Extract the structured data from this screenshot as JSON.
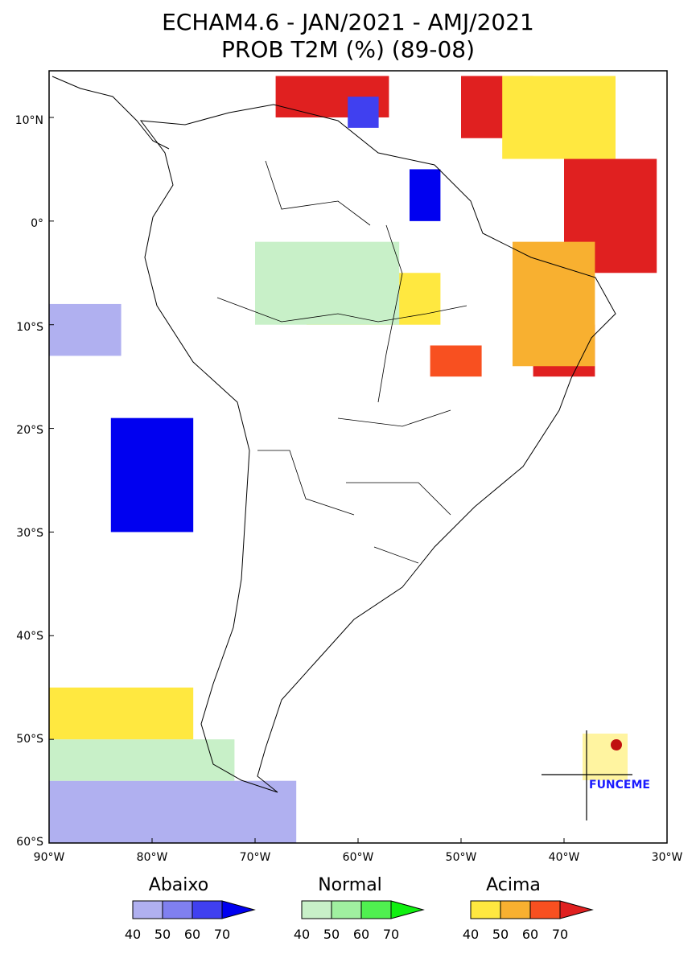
{
  "title": {
    "line1": "ECHAM4.6 - JAN/2021 - AMJ/2021",
    "line2": "PROB T2M (%) (89-08)"
  },
  "axes": {
    "y_labels": [
      "10°N",
      "0°",
      "10°S",
      "20°S",
      "30°S",
      "40°S",
      "50°S",
      "60°S"
    ],
    "x_labels": [
      "90°W",
      "80°W",
      "70°W",
      "60°W",
      "50°W",
      "40°W",
      "30°W"
    ],
    "lon_range": [
      -90,
      -30
    ],
    "lat_range": [
      -60,
      14.5
    ]
  },
  "legend": {
    "groups": [
      {
        "name": "Abaixo",
        "ticks": [
          "40",
          "50",
          "60",
          "70"
        ],
        "colors": [
          "#b0b0f0",
          "#8080f0",
          "#4040f0",
          "#0000f0"
        ]
      },
      {
        "name": "Normal",
        "ticks": [
          "40",
          "50",
          "60",
          "70"
        ],
        "colors": [
          "#c8f0c8",
          "#a0f0a0",
          "#50f050",
          "#10f010"
        ]
      },
      {
        "name": "Acima",
        "ticks": [
          "40",
          "50",
          "60",
          "70"
        ],
        "colors": [
          "#ffe840",
          "#f8b030",
          "#f85020",
          "#e02020"
        ]
      }
    ]
  },
  "logo": {
    "text": "FUNCEME"
  },
  "regions": [
    {
      "category": "Acima",
      "level": "70",
      "lon": [
        -68,
        -57
      ],
      "lat": [
        10,
        14
      ]
    },
    {
      "category": "Acima",
      "level": "70",
      "lon": [
        -50,
        -43
      ],
      "lat": [
        8,
        14
      ]
    },
    {
      "category": "Acima",
      "level": "70",
      "lon": [
        -40,
        -31
      ],
      "lat": [
        -5,
        6
      ]
    },
    {
      "category": "Acima",
      "level": "70",
      "lon": [
        -43,
        -37
      ],
      "lat": [
        -15,
        -10
      ]
    },
    {
      "category": "Acima",
      "level": "60",
      "lon": [
        -53,
        -48
      ],
      "lat": [
        -15,
        -12
      ]
    },
    {
      "category": "Acima",
      "level": "50",
      "lon": [
        -45,
        -37
      ],
      "lat": [
        -14,
        -2
      ]
    },
    {
      "category": "Acima",
      "level": "40",
      "lon": [
        -46,
        -35
      ],
      "lat": [
        6,
        14
      ]
    },
    {
      "category": "Acima",
      "level": "40",
      "lon": [
        -65,
        -52
      ],
      "lat": [
        -10,
        -5
      ]
    },
    {
      "category": "Abaixo",
      "level": "70",
      "lon": [
        -55,
        -52
      ],
      "lat": [
        0,
        5
      ]
    },
    {
      "category": "Abaixo",
      "level": "60",
      "lon": [
        -61,
        -58
      ],
      "lat": [
        9,
        12
      ]
    },
    {
      "category": "Abaixo",
      "level": "70",
      "lon": [
        -84,
        -76
      ],
      "lat": [
        -30,
        -19
      ]
    },
    {
      "category": "Abaixo",
      "level": "40",
      "lon": [
        -90,
        -83
      ],
      "lat": [
        -13,
        -8
      ]
    },
    {
      "category": "Abaixo",
      "level": "40",
      "lon": [
        -90,
        -66
      ],
      "lat": [
        -60,
        -54
      ]
    },
    {
      "category": "Normal",
      "level": "40",
      "lon": [
        -70,
        -56
      ],
      "lat": [
        -10,
        -2
      ]
    },
    {
      "category": "Normal",
      "level": "40",
      "lon": [
        -90,
        -72
      ],
      "lat": [
        -54,
        -50
      ]
    },
    {
      "category": "Acima",
      "level": "40",
      "lon": [
        -90,
        -76
      ],
      "lat": [
        -50,
        -45
      ]
    }
  ]
}
